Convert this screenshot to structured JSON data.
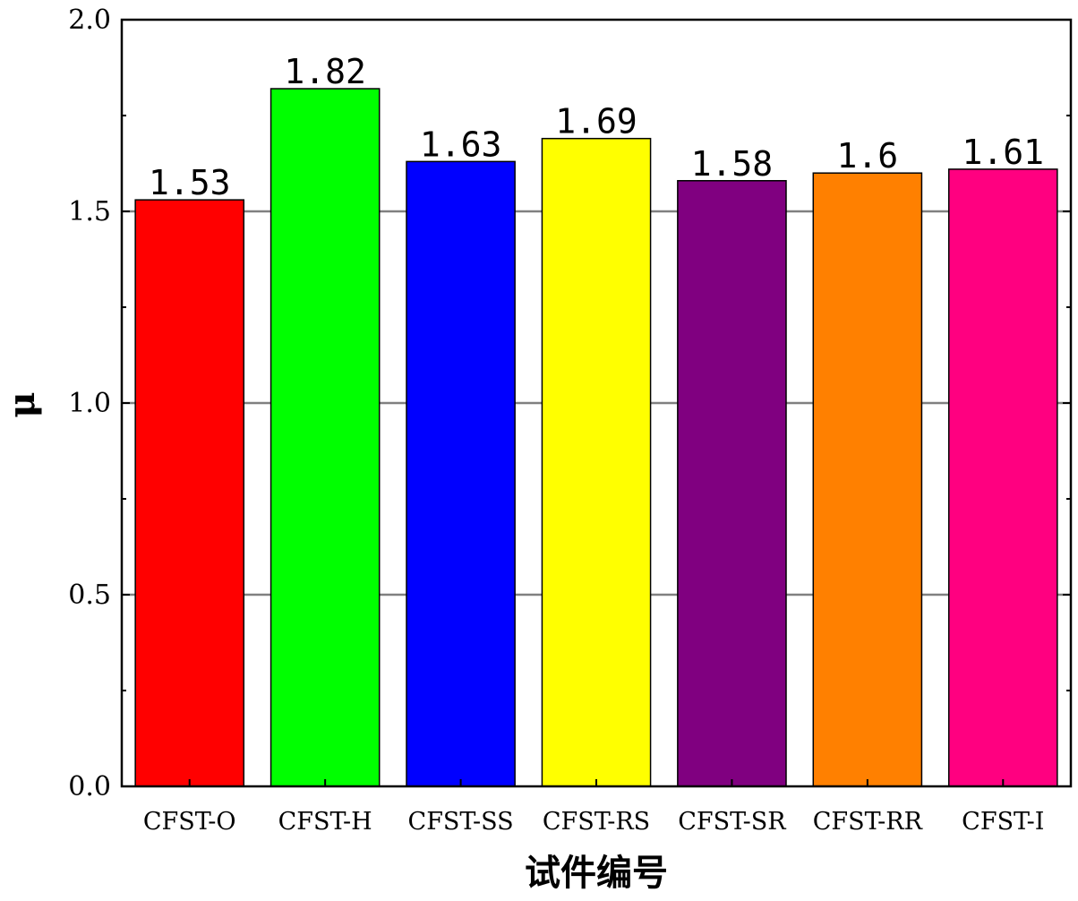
{
  "chart_data": {
    "type": "bar",
    "categories": [
      "CFST-O",
      "CFST-H",
      "CFST-SS",
      "CFST-RS",
      "CFST-SR",
      "CFST-RR",
      "CFST-I"
    ],
    "values": [
      1.53,
      1.82,
      1.63,
      1.69,
      1.58,
      1.6,
      1.61
    ],
    "data_labels": [
      "1.53",
      "1.82",
      "1.63",
      "1.69",
      "1.58",
      "1.6",
      "1.61"
    ],
    "colors": [
      "#ff0000",
      "#00ff00",
      "#0000ff",
      "#ffff00",
      "#800080",
      "#ff8000",
      "#ff0080"
    ],
    "xlabel": "试件编号",
    "ylabel": "μ",
    "ylim": [
      0,
      2.0
    ],
    "yticks": [
      0.0,
      0.5,
      1.0,
      1.5,
      2.0
    ],
    "ytick_labels": [
      "0.0",
      "0.5",
      "1.0",
      "1.5",
      "2.0"
    ],
    "grid": true
  }
}
